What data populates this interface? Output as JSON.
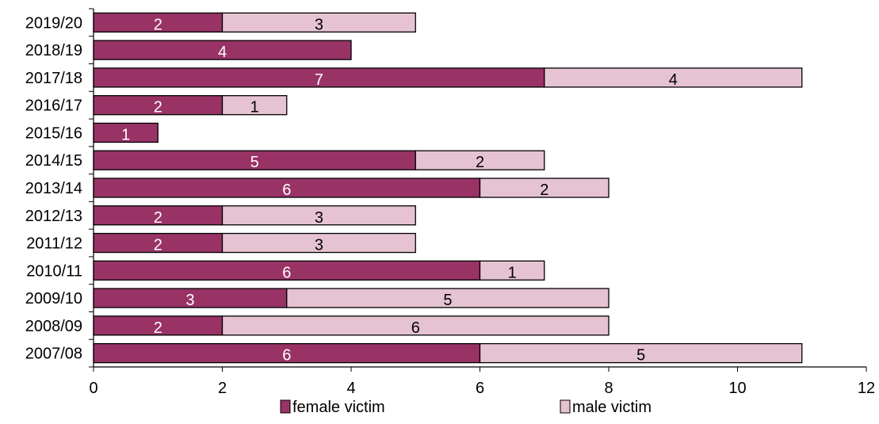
{
  "chart_data": {
    "type": "bar",
    "orientation": "horizontal",
    "stacked": true,
    "categories": [
      "2019/20",
      "2018/19",
      "2017/18",
      "2016/17",
      "2015/16",
      "2014/15",
      "2013/14",
      "2012/13",
      "2011/12",
      "2010/11",
      "2009/10",
      "2008/09",
      "2007/08"
    ],
    "series": [
      {
        "name": "female victim",
        "color": "#993366",
        "label_color": "#ffffff",
        "values": [
          2,
          4,
          7,
          2,
          1,
          5,
          6,
          2,
          2,
          6,
          3,
          2,
          6
        ]
      },
      {
        "name": "male victim",
        "color": "#e6c3d2",
        "label_color": "#000000",
        "values": [
          3,
          0,
          4,
          1,
          0,
          2,
          2,
          3,
          3,
          1,
          5,
          6,
          5
        ]
      }
    ],
    "xlim": [
      0,
      12
    ],
    "xticks": [
      "0",
      "2",
      "4",
      "6",
      "8",
      "10",
      "12"
    ],
    "grid": false,
    "legend_position": "bottom",
    "title": "",
    "xlabel": "",
    "ylabel": ""
  }
}
